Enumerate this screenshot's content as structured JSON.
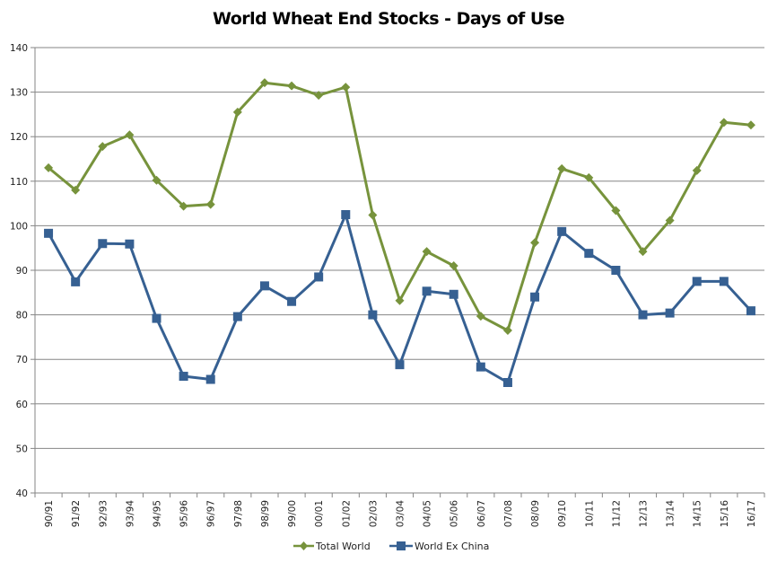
{
  "chart_data": {
    "type": "line",
    "title": "World Wheat End Stocks - Days of Use",
    "xlabel": "",
    "ylabel": "",
    "ylim": [
      40,
      140
    ],
    "yticks": [
      40,
      50,
      60,
      70,
      80,
      90,
      100,
      110,
      120,
      130,
      140
    ],
    "grid": true,
    "legend_position": "bottom",
    "categories": [
      "90/91",
      "91/92",
      "92/93",
      "93/94",
      "94/95",
      "95/96",
      "96/97",
      "97/98",
      "98/99",
      "99/00",
      "00/01",
      "01/02",
      "02/03",
      "03/04",
      "04/05",
      "05/06",
      "06/07",
      "07/08",
      "08/09",
      "09/10",
      "10/11",
      "11/12",
      "12/13",
      "13/14",
      "14/15",
      "15/16",
      "16/17"
    ],
    "series": [
      {
        "name": "Total World",
        "color": "#77933C",
        "marker": "diamond",
        "values": [
          113.0,
          108.0,
          117.8,
          120.4,
          110.2,
          104.4,
          104.8,
          125.5,
          132.1,
          131.4,
          129.3,
          131.1,
          102.4,
          83.2,
          94.2,
          91.0,
          79.7,
          76.5,
          96.2,
          112.8,
          110.8,
          103.4,
          94.2,
          101.2,
          112.4,
          123.2,
          122.6
        ]
      },
      {
        "name": "World Ex China",
        "color": "#366092",
        "marker": "square",
        "values": [
          98.3,
          87.4,
          96.0,
          95.9,
          79.2,
          66.2,
          65.5,
          79.6,
          86.5,
          83.0,
          88.5,
          102.5,
          80.0,
          68.8,
          85.3,
          84.6,
          68.3,
          64.8,
          84.0,
          98.7,
          93.8,
          90.0,
          80.0,
          80.4,
          87.5,
          87.5,
          80.9
        ]
      }
    ]
  },
  "legend": {
    "items": [
      {
        "label": "Total World"
      },
      {
        "label": "World Ex China"
      }
    ]
  }
}
